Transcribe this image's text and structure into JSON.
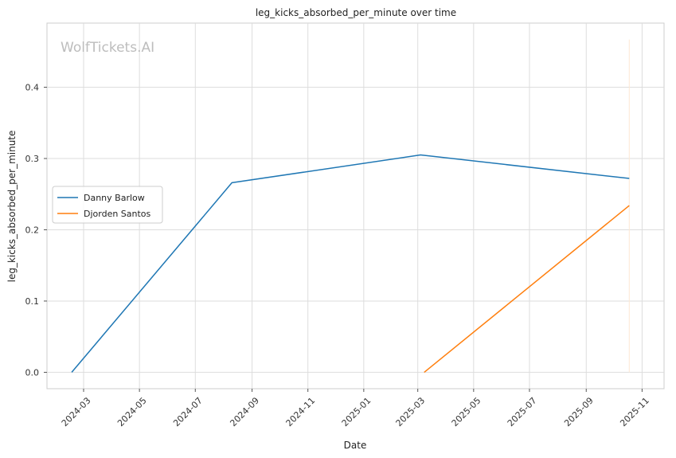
{
  "chart_data": {
    "type": "line",
    "title": "leg_kicks_absorbed_per_minute over time",
    "xlabel": "Date",
    "ylabel": "leg_kicks_absorbed_per_minute",
    "watermark": "WolfTickets.AI",
    "x_axis_type": "date",
    "xlim": [
      "2024-01-21",
      "2025-11-25"
    ],
    "ylim": [
      -0.023,
      0.49
    ],
    "x_ticks": [
      "2024-03-01",
      "2024-05-01",
      "2024-07-01",
      "2024-09-01",
      "2024-11-01",
      "2025-01-01",
      "2025-03-01",
      "2025-05-01",
      "2025-07-01",
      "2025-09-01",
      "2025-11-01"
    ],
    "x_tick_labels": [
      "2024-03",
      "2024-05",
      "2024-07",
      "2024-09",
      "2024-11",
      "2025-01",
      "2025-03",
      "2025-05",
      "2025-07",
      "2025-09",
      "2025-11"
    ],
    "y_ticks": [
      0.0,
      0.1,
      0.2,
      0.3,
      0.4
    ],
    "y_tick_labels": [
      "0.0",
      "0.1",
      "0.2",
      "0.3",
      "0.4"
    ],
    "grid": true,
    "legend_position": "center-left",
    "series": [
      {
        "name": "Danny Barlow",
        "color": "#1f77b4",
        "x": [
          "2024-02-17",
          "2024-08-10",
          "2025-03-04",
          "2025-10-18"
        ],
        "y": [
          0.0,
          0.266,
          0.305,
          0.272
        ]
      },
      {
        "name": "Djorden Santos",
        "color": "#ff7f0e",
        "x": [
          "2025-03-08",
          "2025-10-18"
        ],
        "y": [
          0.0,
          0.234
        ]
      }
    ],
    "annotations": [
      {
        "type": "vertical-line",
        "x": "2025-10-18",
        "y_range": [
          0.0,
          0.467
        ],
        "color": "#fde9d3"
      }
    ]
  }
}
